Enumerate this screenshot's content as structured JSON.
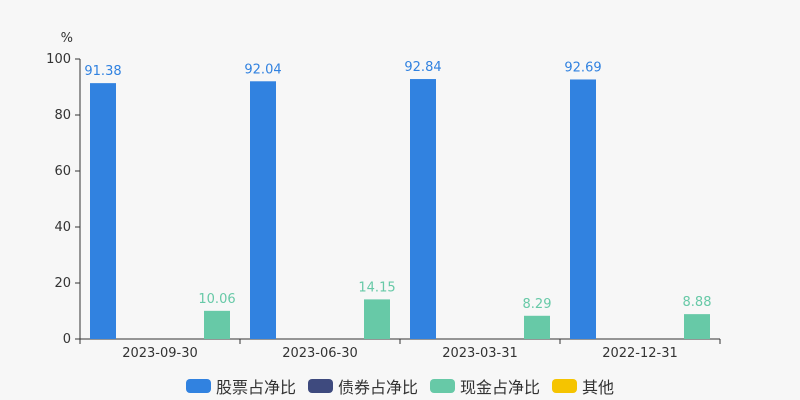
{
  "chart_data": {
    "type": "bar",
    "ylabel": "%",
    "ylim": [
      0,
      100
    ],
    "yticks": [
      "0",
      "20",
      "40",
      "60",
      "80",
      "100"
    ],
    "categories": [
      "2023-09-30",
      "2023-06-30",
      "2023-03-31",
      "2022-12-31"
    ],
    "series": [
      {
        "name": "股票占净比",
        "color": "#3182e0",
        "values": [
          91.38,
          92.04,
          92.84,
          92.69
        ],
        "labels": [
          "91.38",
          "92.04",
          "92.84",
          "92.69"
        ]
      },
      {
        "name": "债券占净比",
        "color": "#3e4a7e",
        "values": [
          null,
          null,
          null,
          null
        ],
        "labels": [
          "",
          "",
          "",
          ""
        ]
      },
      {
        "name": "现金占净比",
        "color": "#67c9a7",
        "values": [
          10.06,
          14.15,
          8.29,
          8.88
        ],
        "labels": [
          "10.06",
          "14.15",
          "8.29",
          "8.88"
        ]
      },
      {
        "name": "其他",
        "color": "#f5c400",
        "values": [
          null,
          null,
          null,
          null
        ],
        "labels": [
          "",
          "",
          "",
          ""
        ]
      }
    ],
    "grid": false,
    "legend_position": "bottom"
  }
}
